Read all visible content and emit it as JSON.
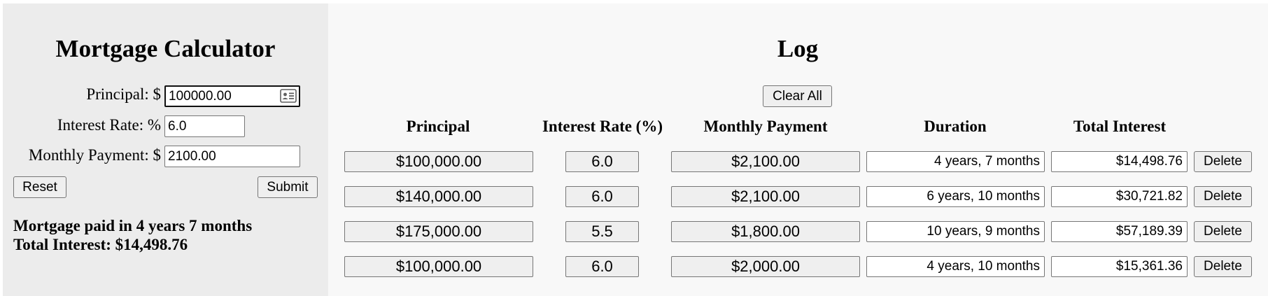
{
  "calculator": {
    "title": "Mortgage Calculator",
    "principal_label": "Principal: $",
    "principal_value": "100000.00",
    "rate_label": "Interest Rate: %",
    "rate_value": "6.0",
    "payment_label": "Monthly Payment: $",
    "payment_value": "2100.00",
    "reset_label": "Reset",
    "submit_label": "Submit",
    "result_line1": "Mortgage paid in 4 years 7 months",
    "result_line2": "Total Interest: $14,498.76"
  },
  "log": {
    "title": "Log",
    "clear_all_label": "Clear All",
    "headers": [
      "Principal",
      "Interest Rate (%)",
      "Monthly Payment",
      "Duration",
      "Total Interest"
    ],
    "rows": [
      {
        "principal": "$100,000.00",
        "rate": "6.0",
        "payment": "$2,100.00",
        "duration": "4 years, 7 months",
        "interest": "$14,498.76",
        "delete_label": "Delete"
      },
      {
        "principal": "$140,000.00",
        "rate": "6.0",
        "payment": "$2,100.00",
        "duration": "6 years, 10 months",
        "interest": "$30,721.82",
        "delete_label": "Delete"
      },
      {
        "principal": "$175,000.00",
        "rate": "5.5",
        "payment": "$1,800.00",
        "duration": "10 years, 9 months",
        "interest": "$57,189.39",
        "delete_label": "Delete"
      },
      {
        "principal": "$100,000.00",
        "rate": "6.0",
        "payment": "$2,000.00",
        "duration": "4 years, 10 months",
        "interest": "$15,361.36",
        "delete_label": "Delete"
      }
    ]
  }
}
